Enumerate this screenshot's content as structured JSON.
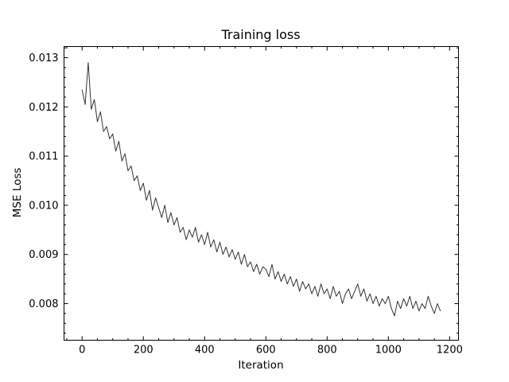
{
  "chart_data": {
    "type": "line",
    "title": "Training loss",
    "xlabel": "Iteration",
    "ylabel": "MSE Loss",
    "xlim": [
      -59,
      1229
    ],
    "ylim": [
      0.007256,
      0.013227
    ],
    "xticks": [
      0,
      200,
      400,
      600,
      800,
      1000,
      1200
    ],
    "xtick_labels": [
      "0",
      "200",
      "400",
      "600",
      "800",
      "1000",
      "1200"
    ],
    "yticks": [
      0.008,
      0.009,
      0.01,
      0.011,
      0.012,
      0.013
    ],
    "ytick_labels": [
      "0.008",
      "0.009",
      "0.010",
      "0.011",
      "0.012",
      "0.013"
    ],
    "x_minor_step": 50,
    "y_minor_step": 0.0002,
    "grid": false,
    "line_color": "#333333",
    "series": [
      {
        "name": "loss",
        "x_start": 0,
        "x_step": 10,
        "values": [
          0.01235,
          0.01205,
          0.0129,
          0.01195,
          0.01215,
          0.0117,
          0.0119,
          0.0115,
          0.0116,
          0.01135,
          0.01145,
          0.0111,
          0.0113,
          0.0109,
          0.01105,
          0.0107,
          0.0108,
          0.0105,
          0.0106,
          0.0103,
          0.01045,
          0.0101,
          0.0103,
          0.0099,
          0.01015,
          0.00995,
          0.00975,
          0.01,
          0.00965,
          0.00985,
          0.0096,
          0.00975,
          0.00945,
          0.00955,
          0.0093,
          0.0095,
          0.00935,
          0.00955,
          0.00925,
          0.0094,
          0.0092,
          0.00945,
          0.00915,
          0.0093,
          0.00905,
          0.00925,
          0.009,
          0.00915,
          0.00895,
          0.0091,
          0.0089,
          0.00905,
          0.0088,
          0.009,
          0.00875,
          0.00885,
          0.00865,
          0.0088,
          0.0086,
          0.00875,
          0.0087,
          0.00855,
          0.0088,
          0.0085,
          0.00865,
          0.00845,
          0.0086,
          0.0084,
          0.00855,
          0.00835,
          0.0085,
          0.00825,
          0.00845,
          0.0083,
          0.0084,
          0.0082,
          0.00835,
          0.00815,
          0.0084,
          0.0082,
          0.0083,
          0.0081,
          0.00835,
          0.00815,
          0.00825,
          0.008,
          0.0082,
          0.0083,
          0.0081,
          0.00825,
          0.0084,
          0.00815,
          0.0083,
          0.00805,
          0.0082,
          0.008,
          0.00815,
          0.00795,
          0.0081,
          0.008,
          0.00815,
          0.0079,
          0.00775,
          0.00805,
          0.0079,
          0.0081,
          0.00795,
          0.00815,
          0.0079,
          0.00805,
          0.00785,
          0.008,
          0.0079,
          0.00815,
          0.00795,
          0.0078,
          0.008,
          0.00785
        ]
      }
    ]
  }
}
